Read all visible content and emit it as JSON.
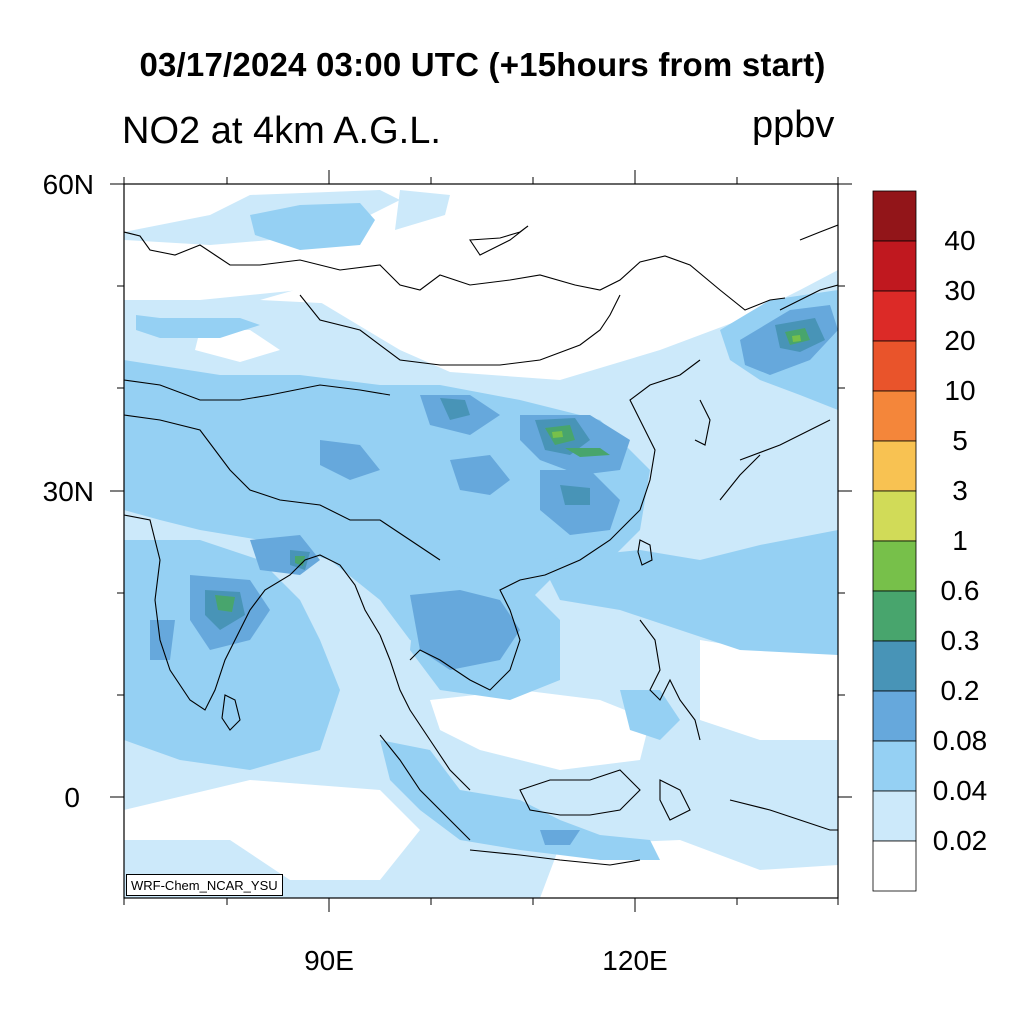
{
  "header": {
    "title": "03/17/2024 03:00 UTC (+15hours from start)",
    "subtitle": "NO2 at 4km A.G.L.",
    "units": "ppbv"
  },
  "map": {
    "lat_labels": [
      "60N",
      "30N",
      "0"
    ],
    "lon_labels": [
      "90E",
      "120E"
    ],
    "model_tag": "WRF-Chem_NCAR_YSU"
  },
  "colorbar": {
    "labels": [
      "40",
      "30",
      "20",
      "10",
      "5",
      "3",
      "1",
      "0.6",
      "0.3",
      "0.2",
      "0.08",
      "0.04",
      "0.02"
    ],
    "colors": [
      "#921519",
      "#c0181f",
      "#dc2a27",
      "#e9542b",
      "#f4863a",
      "#f8c252",
      "#d1db58",
      "#77c04a",
      "#48a56d",
      "#4894b7",
      "#66a8dc",
      "#95d0f3",
      "#cce9fa",
      "#ffffff"
    ]
  },
  "field_colors": {
    "level_002": "#cce9fa",
    "level_004": "#95d0f3",
    "level_008": "#66a8dc",
    "level_02": "#4894b7",
    "level_03": "#48a56d",
    "level_06": "#77c04a"
  }
}
